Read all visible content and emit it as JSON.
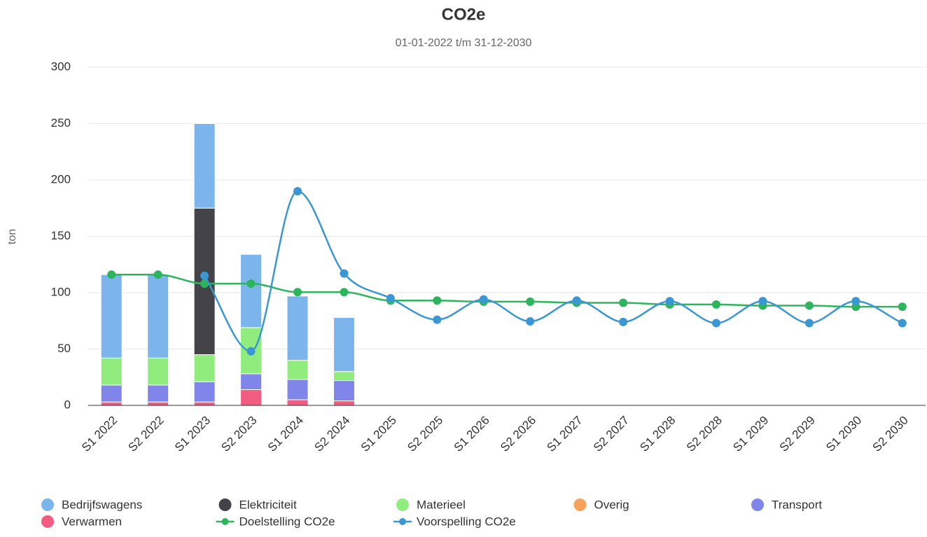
{
  "chart_data": {
    "type": "bar",
    "stacked": true,
    "title": "CO2e",
    "subtitle": "01-01-2022 t/m 31-12-2030",
    "y_label": "ton",
    "categories": [
      "S1 2022",
      "S2 2022",
      "S1 2023",
      "S2 2023",
      "S1 2024",
      "S2 2024",
      "S1 2025",
      "S2 2025",
      "S1 2026",
      "S2 2026",
      "S1 2027",
      "S2 2027",
      "S1 2028",
      "S2 2028",
      "S1 2029",
      "S2 2029",
      "S1 2030",
      "S2 2030"
    ],
    "ylim": [
      0,
      300
    ],
    "yticks": [
      0,
      50,
      100,
      150,
      200,
      250,
      300
    ],
    "grid": true,
    "legend": "bottom",
    "series": [
      {
        "name": "Bedrijfswagens",
        "color": "#7cb5ec",
        "values": [
          74,
          74,
          75,
          65,
          57,
          48,
          null,
          null,
          null,
          null,
          null,
          null,
          null,
          null,
          null,
          null,
          null,
          null
        ]
      },
      {
        "name": "Elektriciteit",
        "color": "#434348",
        "values": [
          0,
          0,
          130,
          0,
          0,
          0,
          null,
          null,
          null,
          null,
          null,
          null,
          null,
          null,
          null,
          null,
          null,
          null
        ]
      },
      {
        "name": "Materieel",
        "color": "#90ed7d",
        "values": [
          24,
          24,
          24,
          41,
          17,
          8,
          null,
          null,
          null,
          null,
          null,
          null,
          null,
          null,
          null,
          null,
          null,
          null
        ]
      },
      {
        "name": "Overig",
        "color": "#f7a35c",
        "values": [
          0,
          0,
          0,
          0,
          0,
          0,
          null,
          null,
          null,
          null,
          null,
          null,
          null,
          null,
          null,
          null,
          null,
          null
        ]
      },
      {
        "name": "Transport",
        "color": "#8085e9",
        "values": [
          15,
          15,
          18,
          14,
          18,
          18,
          null,
          null,
          null,
          null,
          null,
          null,
          null,
          null,
          null,
          null,
          null,
          null
        ]
      },
      {
        "name": "Verwarmen",
        "color": "#f15c80",
        "values": [
          3,
          3,
          3,
          14,
          5,
          4,
          null,
          null,
          null,
          null,
          null,
          null,
          null,
          null,
          null,
          null,
          null,
          null
        ]
      },
      {
        "name": "Doelstelling CO2e",
        "type": "line",
        "color": "#2db55d",
        "values": [
          116,
          116,
          108,
          108,
          100.5,
          100.5,
          93,
          93,
          92,
          92,
          91,
          91,
          89.5,
          89.5,
          88.5,
          88.5,
          87.5,
          87.5
        ]
      },
      {
        "name": "Voorspelling CO2e",
        "type": "line",
        "color": "#3a97d4",
        "values": [
          null,
          null,
          115,
          48,
          190,
          117,
          95,
          76,
          94,
          74.5,
          93,
          74,
          92.5,
          73,
          92.5,
          73,
          92.5,
          73
        ]
      }
    ]
  }
}
